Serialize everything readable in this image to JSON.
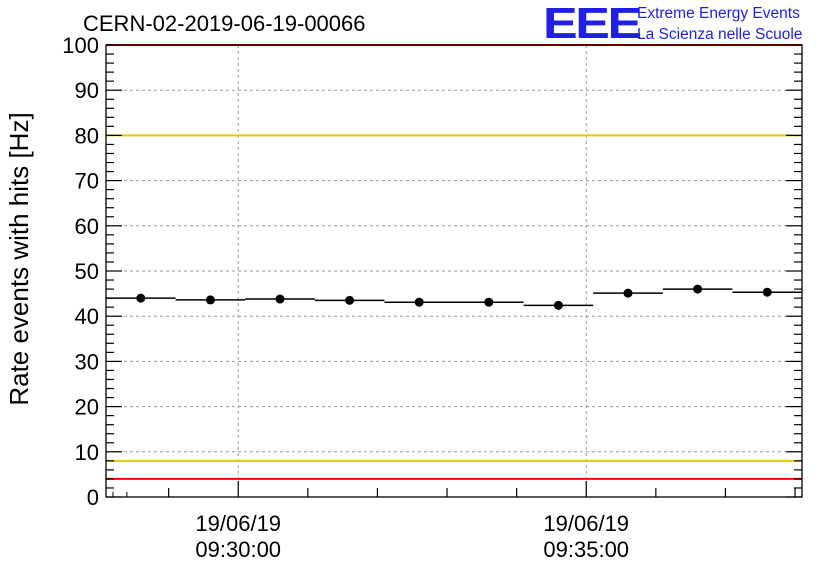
{
  "header": {
    "run_title": "CERN-02-2019-06-19-00066",
    "logo_mark": "EEE",
    "logo_line1": "Extreme Energy Events",
    "logo_line2": "La Scienza nelle Scuole"
  },
  "chart_data": {
    "type": "scatter",
    "title": "CERN-02-2019-06-19-00066",
    "xlabel": "",
    "ylabel": "Rate events with hits [Hz]",
    "ylim": [
      0,
      100
    ],
    "y_ticks": [
      0,
      10,
      20,
      30,
      40,
      50,
      60,
      70,
      80,
      90,
      100
    ],
    "xlim_minutes": [
      28.1,
      38.1
    ],
    "x_ticks": [
      {
        "minute": 30,
        "label_date": "19/06/19",
        "label_time": "09:30:00"
      },
      {
        "minute": 35,
        "label_date": "19/06/19",
        "label_time": "09:35:00"
      }
    ],
    "grid": true,
    "reference_lines": [
      {
        "y": 100,
        "color": "#ff0000"
      },
      {
        "y": 80,
        "color": "#e6c800"
      },
      {
        "y": 8,
        "color": "#e6c800"
      },
      {
        "y": 4,
        "color": "#ff0000"
      }
    ],
    "series": [
      {
        "points": [
          {
            "x_start": 28.1,
            "x_end": 29.1,
            "x": 28.6,
            "y": 44.0
          },
          {
            "x_start": 29.1,
            "x_end": 30.1,
            "x": 29.6,
            "y": 43.6
          },
          {
            "x_start": 30.1,
            "x_end": 31.1,
            "x": 30.6,
            "y": 43.8
          },
          {
            "x_start": 31.1,
            "x_end": 32.1,
            "x": 31.6,
            "y": 43.5
          },
          {
            "x_start": 32.1,
            "x_end": 33.1,
            "x": 32.6,
            "y": 43.1
          },
          {
            "x_start": 33.1,
            "x_end": 34.1,
            "x": 33.6,
            "y": 43.1
          },
          {
            "x_start": 34.1,
            "x_end": 35.1,
            "x": 34.6,
            "y": 42.4
          },
          {
            "x_start": 35.1,
            "x_end": 36.1,
            "x": 35.6,
            "y": 45.1
          },
          {
            "x_start": 36.1,
            "x_end": 37.1,
            "x": 36.6,
            "y": 46.0
          },
          {
            "x_start": 37.1,
            "x_end": 38.1,
            "x": 37.6,
            "y": 45.3
          }
        ]
      }
    ],
    "colors": {
      "axis": "#000000",
      "grid": "#9a9a9a",
      "marker": "#000000"
    }
  }
}
